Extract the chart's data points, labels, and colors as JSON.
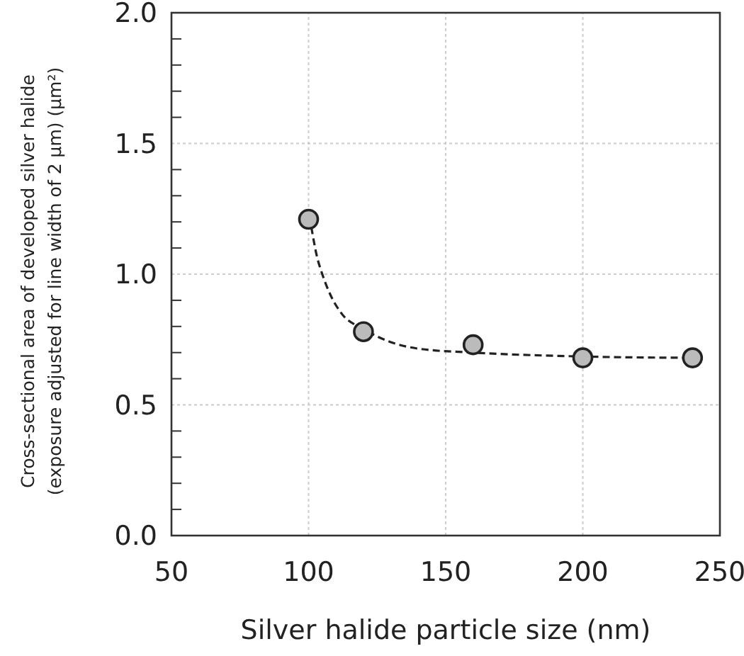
{
  "chart_data": {
    "type": "scatter",
    "xlabel": "Silver halide particle size (nm)",
    "ylabel": [
      "Cross-sectional area of developed silver halide",
      "(exposure adjusted for line width of 2 µm) (µm²)"
    ],
    "xlim": [
      50,
      250
    ],
    "xticks": [
      50,
      100,
      150,
      200,
      250
    ],
    "ylim": [
      0,
      2.0
    ],
    "yticks": [
      {
        "value": 0,
        "label": "0.0"
      },
      {
        "value": 0.1,
        "label": null
      },
      {
        "value": 0.2,
        "label": null
      },
      {
        "value": 0.3,
        "label": null
      },
      {
        "value": 0.4,
        "label": null
      },
      {
        "value": 0.5,
        "label": "0.5"
      },
      {
        "value": 0.6,
        "label": null
      },
      {
        "value": 0.7,
        "label": null
      },
      {
        "value": 0.8,
        "label": null
      },
      {
        "value": 0.9,
        "label": null
      },
      {
        "value": 1.0,
        "label": "1.0"
      },
      {
        "value": 1.1,
        "label": null
      },
      {
        "value": 1.2,
        "label": null
      },
      {
        "value": 1.3,
        "label": null
      },
      {
        "value": 1.4,
        "label": null
      },
      {
        "value": 1.5,
        "label": "1.5"
      },
      {
        "value": 1.6,
        "label": null
      },
      {
        "value": 1.7,
        "label": null
      },
      {
        "value": 1.8,
        "label": null
      },
      {
        "value": 1.9,
        "label": null
      },
      {
        "value": 2.0,
        "label": "2.0"
      }
    ],
    "grid": true,
    "series": [
      {
        "type": "line",
        "color": "#222222",
        "line_style": "dashed",
        "x": [
          101,
          103,
          105,
          108,
          112,
          120,
          130,
          140,
          160,
          200,
          240
        ],
        "values": [
          1.18,
          1.07,
          1.0,
          0.92,
          0.85,
          0.79,
          0.74,
          0.715,
          0.7,
          0.685,
          0.68
        ]
      },
      {
        "color": "#bbbbbb",
        "marker": "circle",
        "x": [
          100,
          120,
          160,
          200,
          240
        ],
        "values": [
          1.21,
          0.78,
          0.73,
          0.68,
          0.68
        ]
      }
    ]
  }
}
